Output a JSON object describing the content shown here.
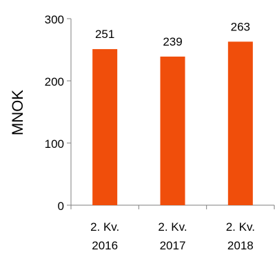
{
  "chart_data": {
    "type": "bar",
    "categories": [
      [
        "2. Kv.",
        "2016"
      ],
      [
        "2. Kv.",
        "2017"
      ],
      [
        "2. Kv.",
        "2018"
      ]
    ],
    "values": [
      251,
      239,
      263
    ],
    "data_labels": [
      "251",
      "239",
      "263"
    ],
    "ylabel": "MNOK",
    "xlabel": "",
    "title": "",
    "ylim": [
      0,
      300
    ],
    "yticks": [
      0,
      100,
      200,
      300
    ],
    "ytick_labels": [
      "0",
      "100",
      "200",
      "300"
    ],
    "grid": false,
    "legend": "none",
    "bar_color": "#F04E0B"
  }
}
